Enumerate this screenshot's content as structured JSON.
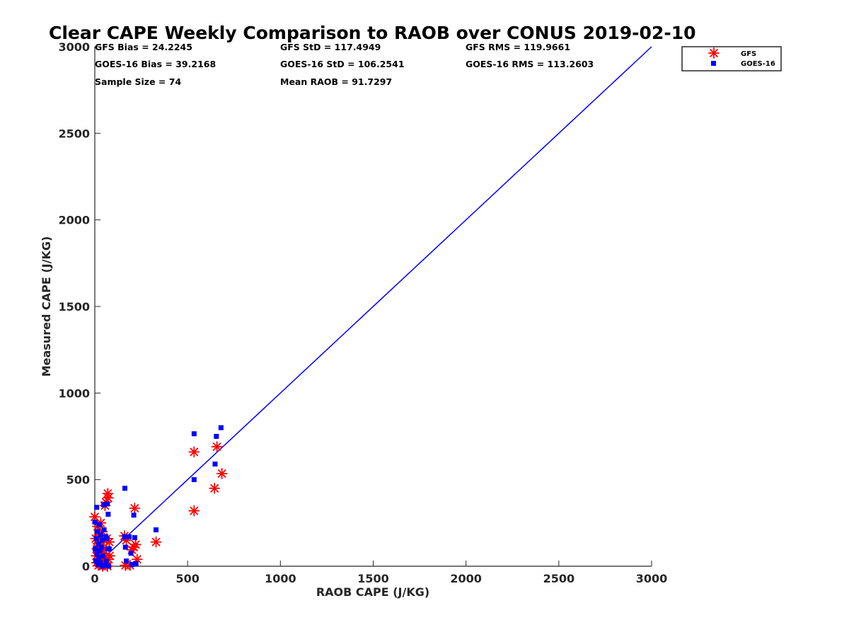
{
  "chart_data": {
    "type": "scatter",
    "title": "Clear CAPE Weekly Comparison to RAOB over CONUS 2019-02-10",
    "xlabel": "RAOB CAPE (J/KG)",
    "ylabel": "Measured CAPE (J/KG)",
    "xlim": [
      0,
      3000
    ],
    "ylim": [
      0,
      3000
    ],
    "xticks": [
      0,
      500,
      1000,
      1500,
      2000,
      2500,
      3000
    ],
    "yticks": [
      0,
      500,
      1000,
      1500,
      2000,
      2500,
      3000
    ],
    "xtick_labels": [
      "0",
      "500",
      "1000",
      "1500",
      "2000",
      "2500",
      "3000"
    ],
    "ytick_labels": [
      "0",
      "500",
      "1000",
      "1500",
      "2000",
      "2500",
      "3000"
    ],
    "grid": false,
    "legend_position": "top-right, outside plot",
    "reference_line": {
      "type": "one-to-one",
      "color": "#0000ff",
      "x": [
        0,
        3000
      ],
      "y": [
        0,
        3000
      ]
    },
    "stats": {
      "gfs_bias": "GFS Bias = 24.2245",
      "gfs_std": "GFS StD = 117.4949",
      "gfs_rms": "GFS RMS = 119.9661",
      "goes_bias": "GOES-16 Bias = 39.2168",
      "goes_std": "GOES-16 StD = 106.2541",
      "goes_rms": "GOES-16 RMS = 113.2603",
      "sample_size": "Sample Size = 74",
      "mean_raob": "Mean RAOB = 91.7297"
    },
    "series": [
      {
        "name": "GFS",
        "marker": "asterisk",
        "color": "#ff0000",
        "points": [
          [
            0,
            285
          ],
          [
            5,
            160
          ],
          [
            8,
            60
          ],
          [
            10,
            20
          ],
          [
            12,
            100
          ],
          [
            15,
            230
          ],
          [
            18,
            130
          ],
          [
            20,
            5
          ],
          [
            22,
            40
          ],
          [
            25,
            180
          ],
          [
            28,
            70
          ],
          [
            30,
            10
          ],
          [
            32,
            250
          ],
          [
            35,
            120
          ],
          [
            38,
            30
          ],
          [
            40,
            200
          ],
          [
            42,
            0
          ],
          [
            45,
            90
          ],
          [
            48,
            15
          ],
          [
            50,
            150
          ],
          [
            52,
            50
          ],
          [
            55,
            350
          ],
          [
            58,
            20
          ],
          [
            60,
            370
          ],
          [
            62,
            100
          ],
          [
            65,
            160
          ],
          [
            68,
            0
          ],
          [
            70,
            420
          ],
          [
            72,
            395
          ],
          [
            75,
            40
          ],
          [
            78,
            140
          ],
          [
            80,
            60
          ],
          [
            160,
            175
          ],
          [
            165,
            5
          ],
          [
            170,
            150
          ],
          [
            190,
            5
          ],
          [
            200,
            95
          ],
          [
            210,
            110
          ],
          [
            215,
            335
          ],
          [
            220,
            125
          ],
          [
            228,
            40
          ],
          [
            330,
            140
          ],
          [
            535,
            320
          ],
          [
            535,
            660
          ],
          [
            645,
            450
          ],
          [
            658,
            690
          ],
          [
            685,
            535
          ]
        ]
      },
      {
        "name": "GOES-16",
        "marker": "square",
        "color": "#0000ff",
        "points": [
          [
            0,
            255
          ],
          [
            2,
            100
          ],
          [
            5,
            30
          ],
          [
            8,
            160
          ],
          [
            10,
            340
          ],
          [
            12,
            70
          ],
          [
            15,
            200
          ],
          [
            18,
            10
          ],
          [
            20,
            130
          ],
          [
            22,
            50
          ],
          [
            25,
            240
          ],
          [
            28,
            90
          ],
          [
            30,
            20
          ],
          [
            32,
            180
          ],
          [
            35,
            110
          ],
          [
            38,
            0
          ],
          [
            40,
            150
          ],
          [
            45,
            60
          ],
          [
            48,
            355
          ],
          [
            50,
            210
          ],
          [
            55,
            5
          ],
          [
            60,
            170
          ],
          [
            62,
            30
          ],
          [
            65,
            160
          ],
          [
            68,
            360
          ],
          [
            70,
            100
          ],
          [
            72,
            300
          ],
          [
            75,
            0
          ],
          [
            78,
            100
          ],
          [
            160,
            170
          ],
          [
            162,
            450
          ],
          [
            165,
            110
          ],
          [
            170,
            30
          ],
          [
            185,
            170
          ],
          [
            195,
            75
          ],
          [
            200,
            10
          ],
          [
            210,
            295
          ],
          [
            215,
            165
          ],
          [
            222,
            15
          ],
          [
            330,
            210
          ],
          [
            535,
            765
          ],
          [
            535,
            500
          ],
          [
            648,
            590
          ],
          [
            655,
            750
          ],
          [
            680,
            800
          ]
        ]
      }
    ]
  },
  "legend": {
    "items": [
      {
        "label": "GFS",
        "color": "#ff0000",
        "icon": "asterisk-marker-icon"
      },
      {
        "label": "GOES-16",
        "color": "#0000ff",
        "icon": "square-marker-icon"
      }
    ]
  }
}
